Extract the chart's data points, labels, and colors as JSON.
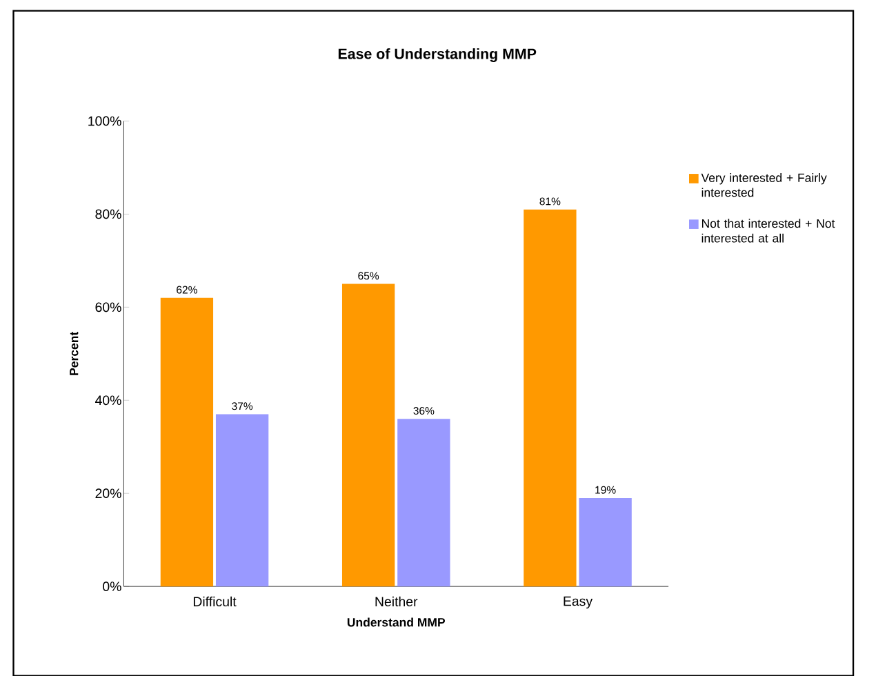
{
  "chart_data": {
    "type": "bar",
    "title": "Ease of Understanding MMP",
    "xlabel": "Understand MMP",
    "ylabel": "Percent",
    "categories": [
      "Difficult",
      "Neither",
      "Easy"
    ],
    "series": [
      {
        "name": "Very interested + Fairly interested",
        "color": "#ff9900",
        "values": [
          62,
          65,
          81
        ],
        "value_labels": [
          "62%",
          "65%",
          "81%"
        ]
      },
      {
        "name": "Not that interested + Not interested at all",
        "color": "#9999ff",
        "values": [
          37,
          36,
          19
        ],
        "value_labels": [
          "37%",
          "36%",
          "19%"
        ]
      }
    ],
    "ylim": [
      0,
      100
    ],
    "yticks": [
      {
        "value": 0,
        "label": "0%"
      },
      {
        "value": 20,
        "label": "20%"
      },
      {
        "value": 40,
        "label": "40%"
      },
      {
        "value": 60,
        "label": "60%"
      },
      {
        "value": 80,
        "label": "80%"
      },
      {
        "value": 100,
        "label": "100%"
      }
    ],
    "grid": false,
    "legend": "right"
  }
}
